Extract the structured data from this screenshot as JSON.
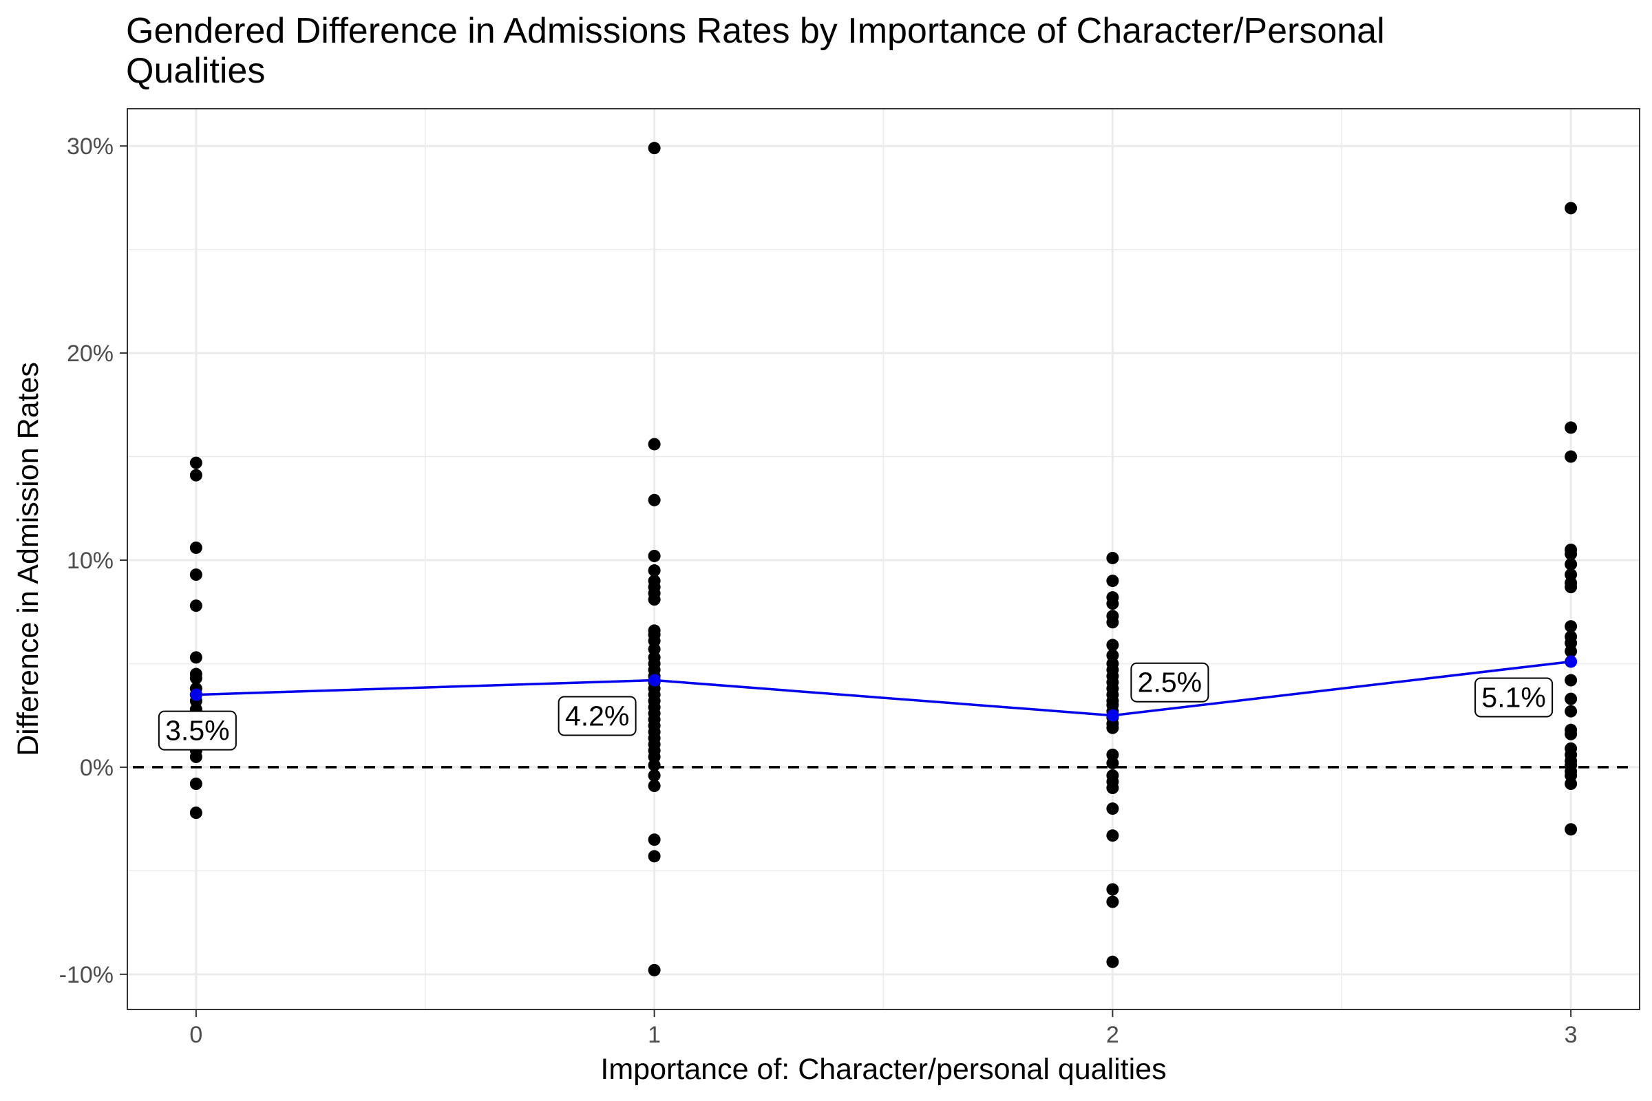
{
  "chart_data": {
    "type": "scatter",
    "title": "Gendered Difference in Admissions Rates by Importance of Character/Personal Qualities",
    "title_lines": [
      "Gendered Difference in Admissions Rates by Importance of Character/Personal",
      "Qualities"
    ],
    "xlabel": "Importance of: Character/personal qualities",
    "ylabel": "Difference in Admission Rates",
    "xlim": [
      -0.15,
      3.15
    ],
    "ylim": [
      -0.117,
      0.318
    ],
    "x_ticks": [
      0,
      1,
      2,
      3
    ],
    "x_tick_labels": [
      "0",
      "1",
      "2",
      "3"
    ],
    "y_ticks": [
      -0.1,
      0,
      0.1,
      0.2,
      0.3
    ],
    "y_tick_labels": [
      "-10%",
      "0%",
      "10%",
      "20%",
      "30%"
    ],
    "grid": true,
    "reference_line": {
      "y": 0,
      "style": "dashed",
      "color": "#000000"
    },
    "points": [
      {
        "x": 0,
        "values": [
          0.147,
          0.141,
          0.106,
          0.093,
          0.078,
          0.053,
          0.045,
          0.043,
          0.038,
          0.035,
          0.032,
          0.028,
          0.025,
          0.022,
          0.019,
          0.016,
          0.013,
          0.01,
          0.008,
          0.005,
          -0.008,
          -0.022
        ]
      },
      {
        "x": 1,
        "values": [
          0.299,
          0.156,
          0.129,
          0.102,
          0.095,
          0.09,
          0.087,
          0.084,
          0.081,
          0.066,
          0.064,
          0.061,
          0.057,
          0.053,
          0.05,
          0.047,
          0.044,
          0.041,
          0.038,
          0.035,
          0.032,
          0.029,
          0.026,
          0.023,
          0.02,
          0.017,
          0.014,
          0.011,
          0.008,
          0.005,
          0.001,
          -0.004,
          -0.009,
          -0.035,
          -0.043,
          -0.098
        ]
      },
      {
        "x": 2,
        "values": [
          0.101,
          0.09,
          0.082,
          0.079,
          0.073,
          0.07,
          0.059,
          0.054,
          0.05,
          0.047,
          0.044,
          0.041,
          0.038,
          0.035,
          0.032,
          0.03,
          0.027,
          0.024,
          0.021,
          0.019,
          0.006,
          0.002,
          -0.004,
          -0.007,
          -0.01,
          -0.02,
          -0.033,
          -0.059,
          -0.065,
          -0.094
        ]
      },
      {
        "x": 3,
        "values": [
          0.27,
          0.164,
          0.15,
          0.105,
          0.103,
          0.098,
          0.093,
          0.089,
          0.087,
          0.068,
          0.063,
          0.06,
          0.056,
          0.042,
          0.033,
          0.027,
          0.018,
          0.016,
          0.009,
          0.006,
          0.003,
          0.001,
          -0.002,
          -0.004,
          -0.008,
          -0.03
        ]
      }
    ],
    "series": [
      {
        "name": "",
        "color": "#0000ee",
        "x": [
          0,
          1,
          2,
          3
        ],
        "values": [
          0.035,
          0.042,
          0.025,
          0.051
        ]
      }
    ],
    "annotations": [
      {
        "x": 0,
        "y": 0.035,
        "text": "3.5%",
        "anchor": "below"
      },
      {
        "x": 1,
        "y": 0.042,
        "text": "4.2%",
        "anchor": "below-left"
      },
      {
        "x": 2,
        "y": 0.025,
        "text": "2.5%",
        "anchor": "above-right"
      },
      {
        "x": 3,
        "y": 0.051,
        "text": "5.1%",
        "anchor": "below-left"
      }
    ],
    "colors": {
      "points": "#000000",
      "mean_line": "#0000ee",
      "grid": "#ebebeb",
      "panel_border": "#333333"
    }
  }
}
